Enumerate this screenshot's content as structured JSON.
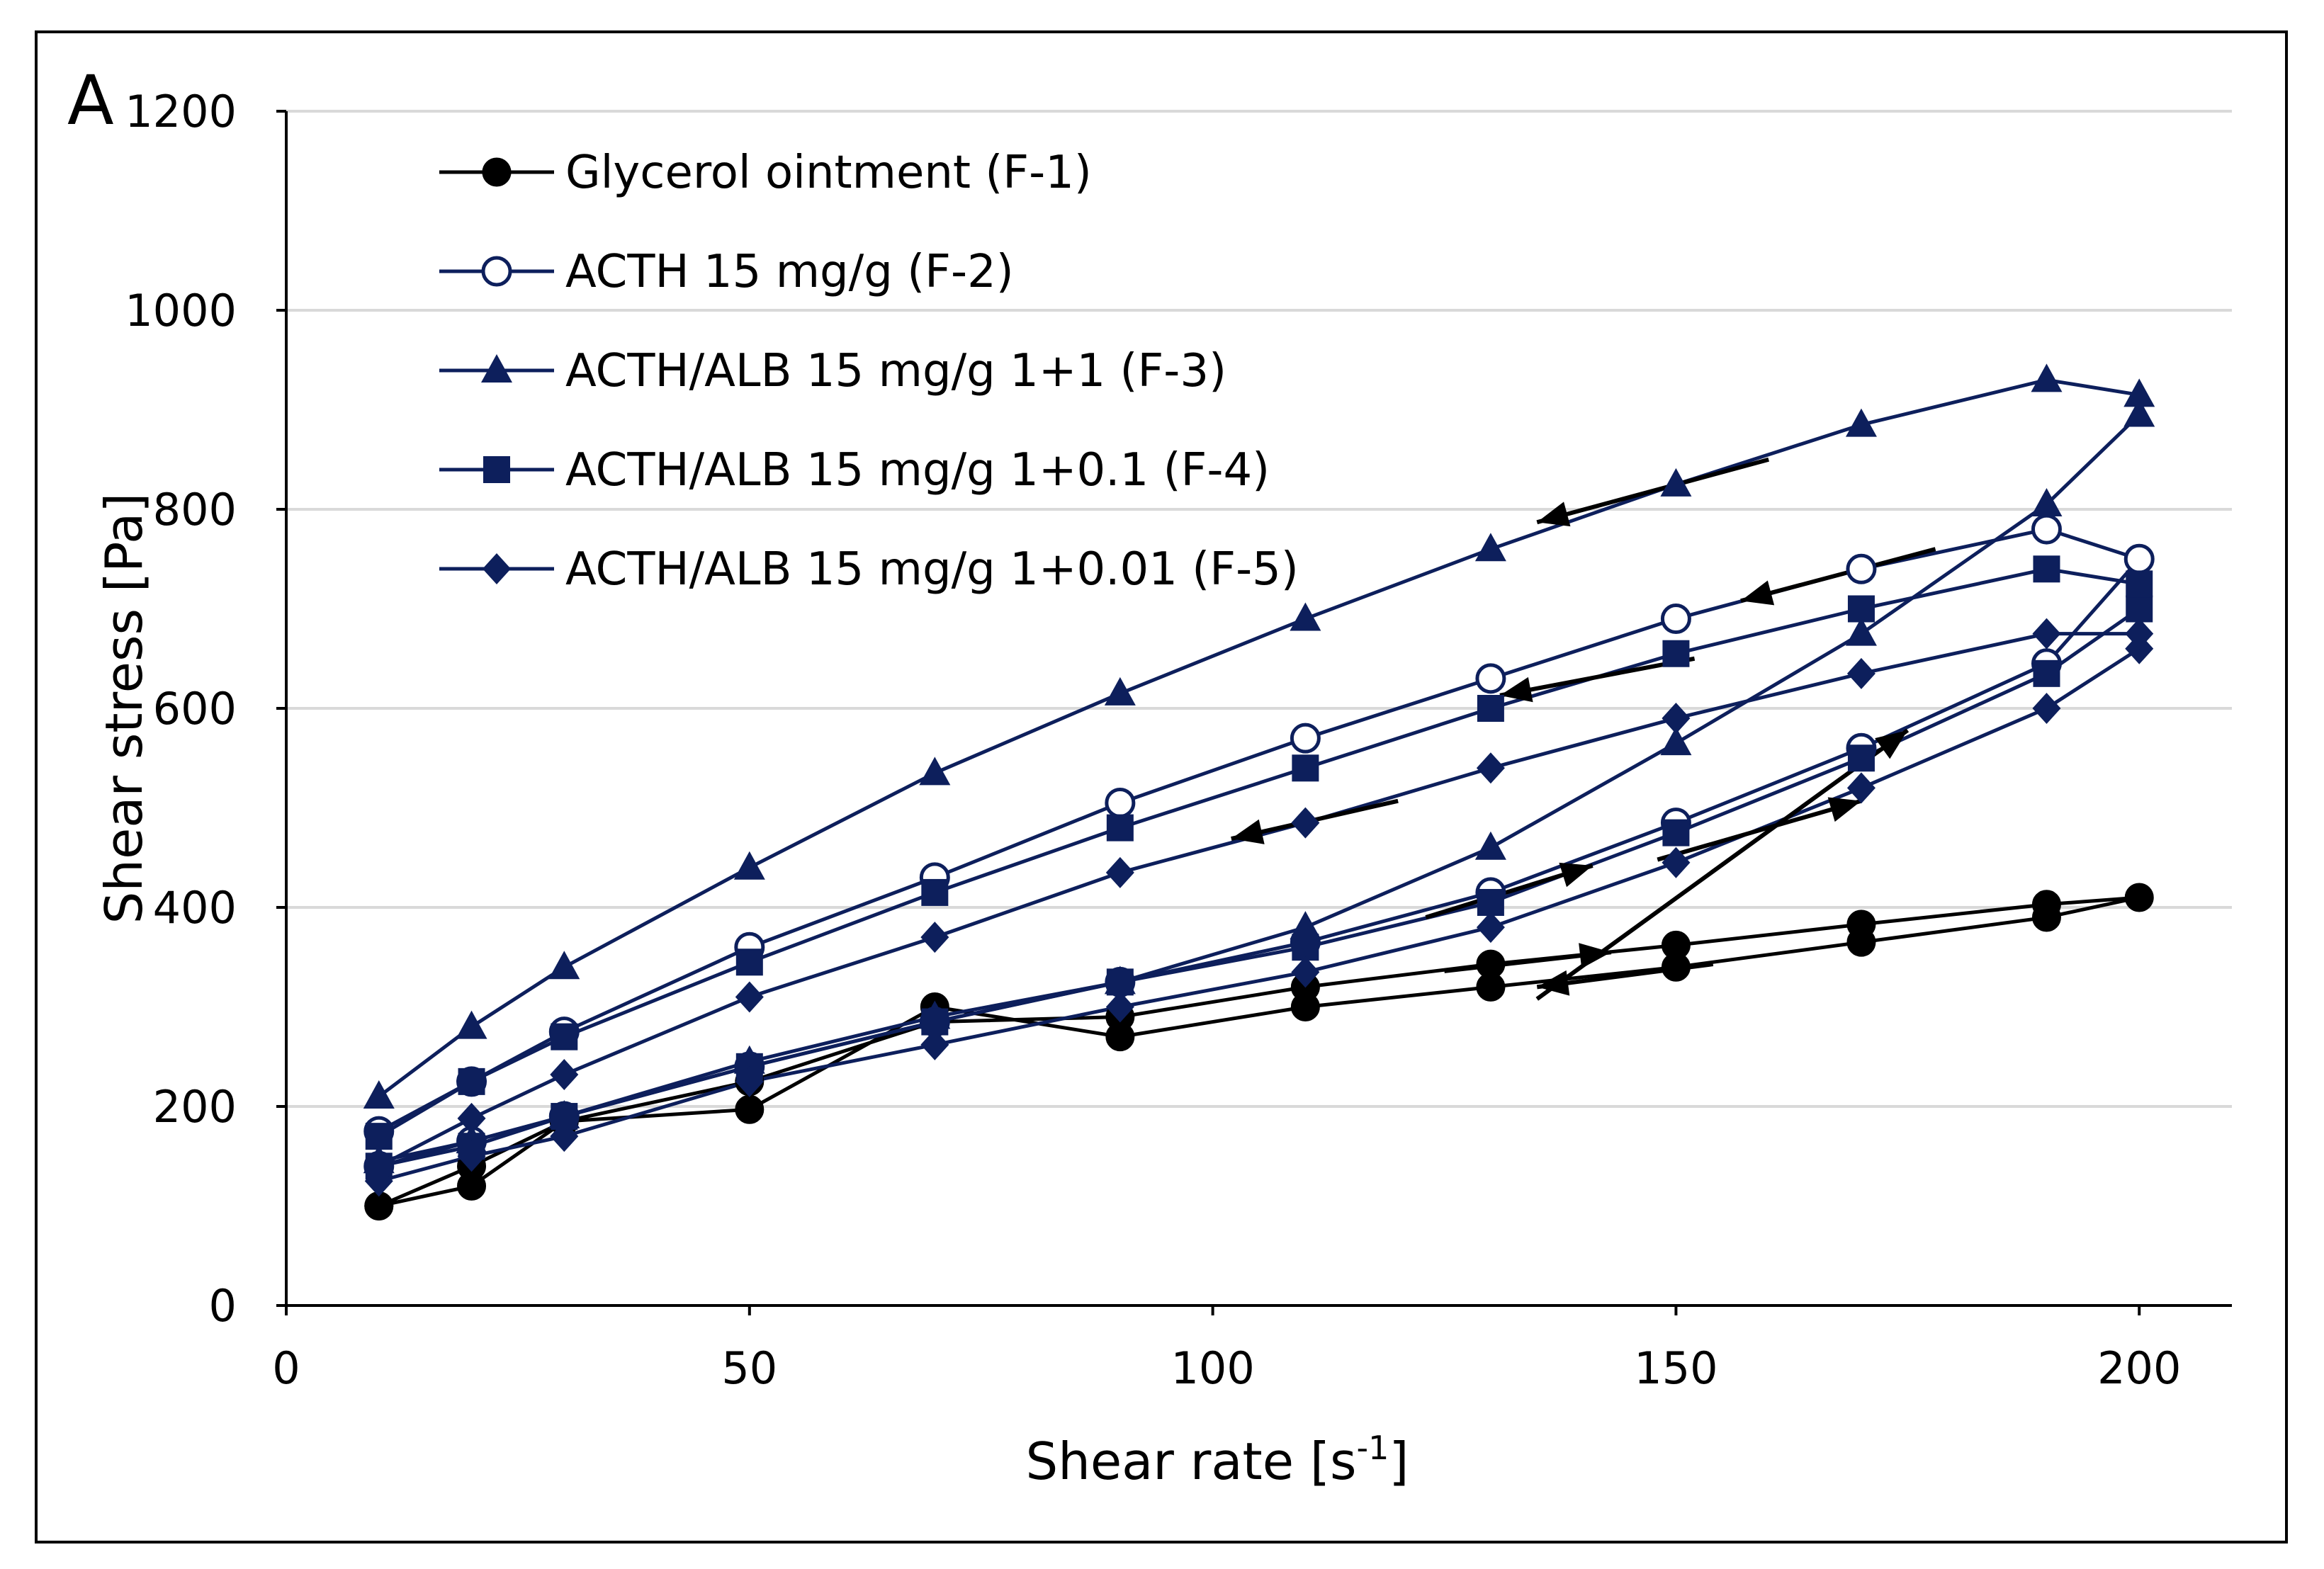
{
  "chart_data": {
    "type": "line",
    "panel_label": "A",
    "title": "",
    "xlabel": {
      "text": "Shear rate [s",
      "superscript": "-1",
      "suffix": "]"
    },
    "ylabel": "Shear stress [Pa]",
    "xlim": [
      0,
      210
    ],
    "ylim": [
      0,
      1200
    ],
    "x_ticks": [
      0,
      50,
      100,
      150,
      200
    ],
    "y_ticks": [
      0,
      200,
      400,
      600,
      800,
      1000,
      1200
    ],
    "x_tick_labels": [
      "0",
      "50",
      "100",
      "150",
      "200"
    ],
    "y_tick_labels": [
      "0",
      "200",
      "400",
      "600",
      "800",
      "1000",
      "1200"
    ],
    "gridlines": "horizontal",
    "legend_position": "top-left",
    "colors": {
      "black": "#000000",
      "navy": "#0d1f5c",
      "grid": "#d9d9d9"
    },
    "series": [
      {
        "name": "Glycerol ointment (F-1)",
        "marker": "circle-filled",
        "color": "#000000",
        "x": [
          10,
          20,
          30,
          50,
          70,
          90,
          110,
          130,
          150,
          170,
          190,
          200,
          190,
          170,
          150,
          130,
          110,
          90,
          70,
          50,
          30,
          20,
          10
        ],
        "y": [
          100,
          120,
          185,
          197,
          300,
          270,
          300,
          320,
          340,
          365,
          390,
          410,
          403,
          383,
          362,
          343,
          320,
          290,
          285,
          225,
          185,
          140,
          100
        ]
      },
      {
        "name": "ACTH 15 mg/g (F-2)",
        "marker": "circle-open",
        "color": "#0d1f5c",
        "x": [
          10,
          20,
          30,
          50,
          70,
          90,
          110,
          130,
          150,
          170,
          190,
          200,
          190,
          170,
          150,
          130,
          110,
          90,
          70,
          50,
          30,
          20,
          10
        ],
        "y": [
          140,
          165,
          190,
          240,
          285,
          325,
          365,
          415,
          485,
          560,
          645,
          750,
          780,
          740,
          690,
          630,
          570,
          505,
          430,
          360,
          275,
          225,
          175
        ]
      },
      {
        "name": "ACTH/ALB 15 mg/g 1+1 (F-3)",
        "marker": "triangle-filled",
        "color": "#0d1f5c",
        "x": [
          10,
          20,
          30,
          50,
          70,
          90,
          110,
          130,
          150,
          170,
          190,
          200,
          200,
          190,
          170,
          150,
          130,
          110,
          90,
          70,
          50,
          30,
          20,
          10
        ],
        "y": [
          145,
          165,
          190,
          245,
          290,
          325,
          380,
          460,
          565,
          675,
          805,
          895,
          915,
          930,
          885,
          825,
          760,
          690,
          615,
          535,
          440,
          340,
          280,
          210
        ]
      },
      {
        "name": "ACTH/ALB 15 mg/g 1+0.1 (F-4)",
        "marker": "square-filled",
        "color": "#0d1f5c",
        "x": [
          10,
          20,
          30,
          50,
          70,
          90,
          110,
          130,
          150,
          170,
          190,
          200,
          200,
          190,
          170,
          150,
          130,
          110,
          90,
          70,
          50,
          30,
          20,
          10
        ],
        "y": [
          140,
          160,
          190,
          240,
          285,
          325,
          360,
          405,
          475,
          550,
          635,
          700,
          725,
          740,
          700,
          655,
          600,
          540,
          480,
          415,
          345,
          270,
          225,
          170
        ]
      },
      {
        "name": "ACTH/ALB 15 mg/g 1+0.01 (F-5)",
        "marker": "diamond-filled",
        "color": "#0d1f5c",
        "x": [
          10,
          20,
          30,
          50,
          70,
          90,
          110,
          130,
          150,
          170,
          190,
          200,
          200,
          190,
          170,
          150,
          130,
          110,
          90,
          70,
          50,
          30,
          20,
          10
        ],
        "y": [
          125,
          150,
          170,
          225,
          262,
          300,
          335,
          380,
          445,
          520,
          600,
          660,
          675,
          675,
          635,
          590,
          540,
          485,
          435,
          370,
          310,
          232,
          188,
          140
        ]
      }
    ],
    "arrows": [
      {
        "from": [
          160,
          850
        ],
        "to": [
          135,
          787
        ]
      },
      {
        "from": [
          178,
          760
        ],
        "to": [
          157,
          708
        ]
      },
      {
        "from": [
          152,
          650
        ],
        "to": [
          131,
          613
        ]
      },
      {
        "from": [
          120,
          507
        ],
        "to": [
          102,
          469
        ]
      },
      {
        "from": [
          123,
          390
        ],
        "to": [
          141,
          442
        ]
      },
      {
        "from": [
          135,
          308
        ],
        "to": [
          175,
          578
        ]
      },
      {
        "from": [
          125,
          336
        ],
        "to": [
          143,
          355
        ]
      },
      {
        "from": [
          154,
          343
        ],
        "to": [
          135,
          320
        ]
      },
      {
        "from": [
          148,
          448
        ],
        "to": [
          170,
          507
        ]
      }
    ]
  }
}
